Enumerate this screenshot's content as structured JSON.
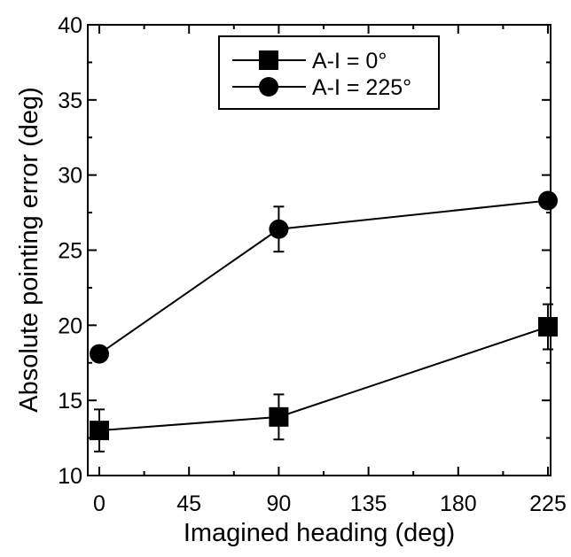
{
  "chart_data": {
    "type": "line",
    "xlabel": "Imagined heading (deg)",
    "ylabel": "Absolute pointing error (deg)",
    "xlim": [
      0,
      225
    ],
    "ylim": [
      10,
      40
    ],
    "x_ticks": [
      "0",
      "45",
      "90",
      "135",
      "180",
      "225"
    ],
    "y_ticks": [
      "10",
      "15",
      "20",
      "25",
      "30",
      "35",
      "40"
    ],
    "grid": false,
    "legend_position": "top-center",
    "x": [
      0,
      90,
      225
    ],
    "series": [
      {
        "name": "A-I = 0°",
        "marker": "square",
        "values": [
          13.0,
          13.9,
          19.9
        ],
        "error": [
          1.4,
          1.5,
          1.5
        ]
      },
      {
        "name": "A-I = 225°",
        "marker": "circle",
        "values": [
          18.1,
          26.4,
          28.3
        ],
        "error": [
          0,
          1.5,
          0
        ]
      }
    ]
  }
}
